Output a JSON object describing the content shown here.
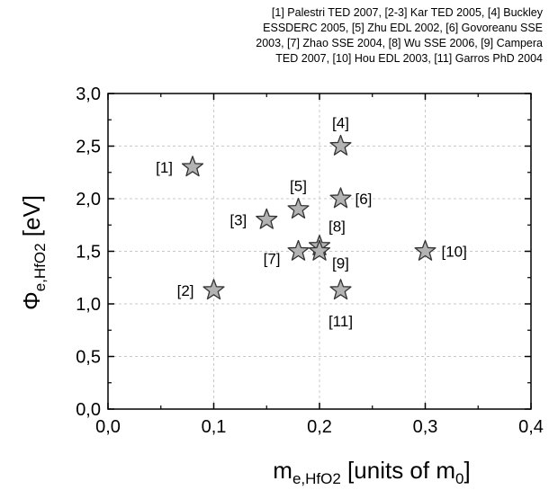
{
  "reference_note": [
    "[1] Palestri TED 2007, [2-3] Kar TED 2005, [4] Buckley",
    "ESSDERC 2005, [5] Zhu EDL 2002, [6] Govoreanu SSE",
    "2003, [7] Zhao SSE 2004, [8] Wu SSE 2006, [9] Campera",
    "TED 2007, [10] Hou EDL 2003, [11] Garros PhD 2004"
  ],
  "chart_data": {
    "type": "scatter",
    "marker": "star",
    "marker_color": "#b3b3b3",
    "marker_edge_color": "#333333",
    "grid": true,
    "xlabel": {
      "main": "m",
      "sub": "e,HfO2",
      "rest": " [units of m",
      "sub2": "0",
      "end": "]"
    },
    "ylabel": {
      "main": "Φ",
      "sub": "e,HfO2",
      "rest": " [eV]"
    },
    "xlim": [
      0.0,
      0.4
    ],
    "ylim": [
      0.0,
      3.0
    ],
    "xticks": [
      "0,0",
      "0,1",
      "0,2",
      "0,3",
      "0,4"
    ],
    "yticks": [
      "0,0",
      "0,5",
      "1,0",
      "1,5",
      "2,0",
      "2,5",
      "3,0"
    ],
    "points": [
      {
        "label": "[1]",
        "x": 0.08,
        "y": 2.3
      },
      {
        "label": "[2]",
        "x": 0.1,
        "y": 1.13
      },
      {
        "label": "[3]",
        "x": 0.15,
        "y": 1.8
      },
      {
        "label": "[4]",
        "x": 0.22,
        "y": 2.5
      },
      {
        "label": "[5]",
        "x": 0.18,
        "y": 1.9
      },
      {
        "label": "[6]",
        "x": 0.22,
        "y": 2.0
      },
      {
        "label": "[7]",
        "x": 0.18,
        "y": 1.5
      },
      {
        "label": "[8]",
        "x": 0.2,
        "y": 1.55
      },
      {
        "label": "[9]",
        "x": 0.2,
        "y": 1.5
      },
      {
        "label": "[10]",
        "x": 0.3,
        "y": 1.5
      },
      {
        "label": "[11]",
        "x": 0.22,
        "y": 1.13
      }
    ]
  }
}
